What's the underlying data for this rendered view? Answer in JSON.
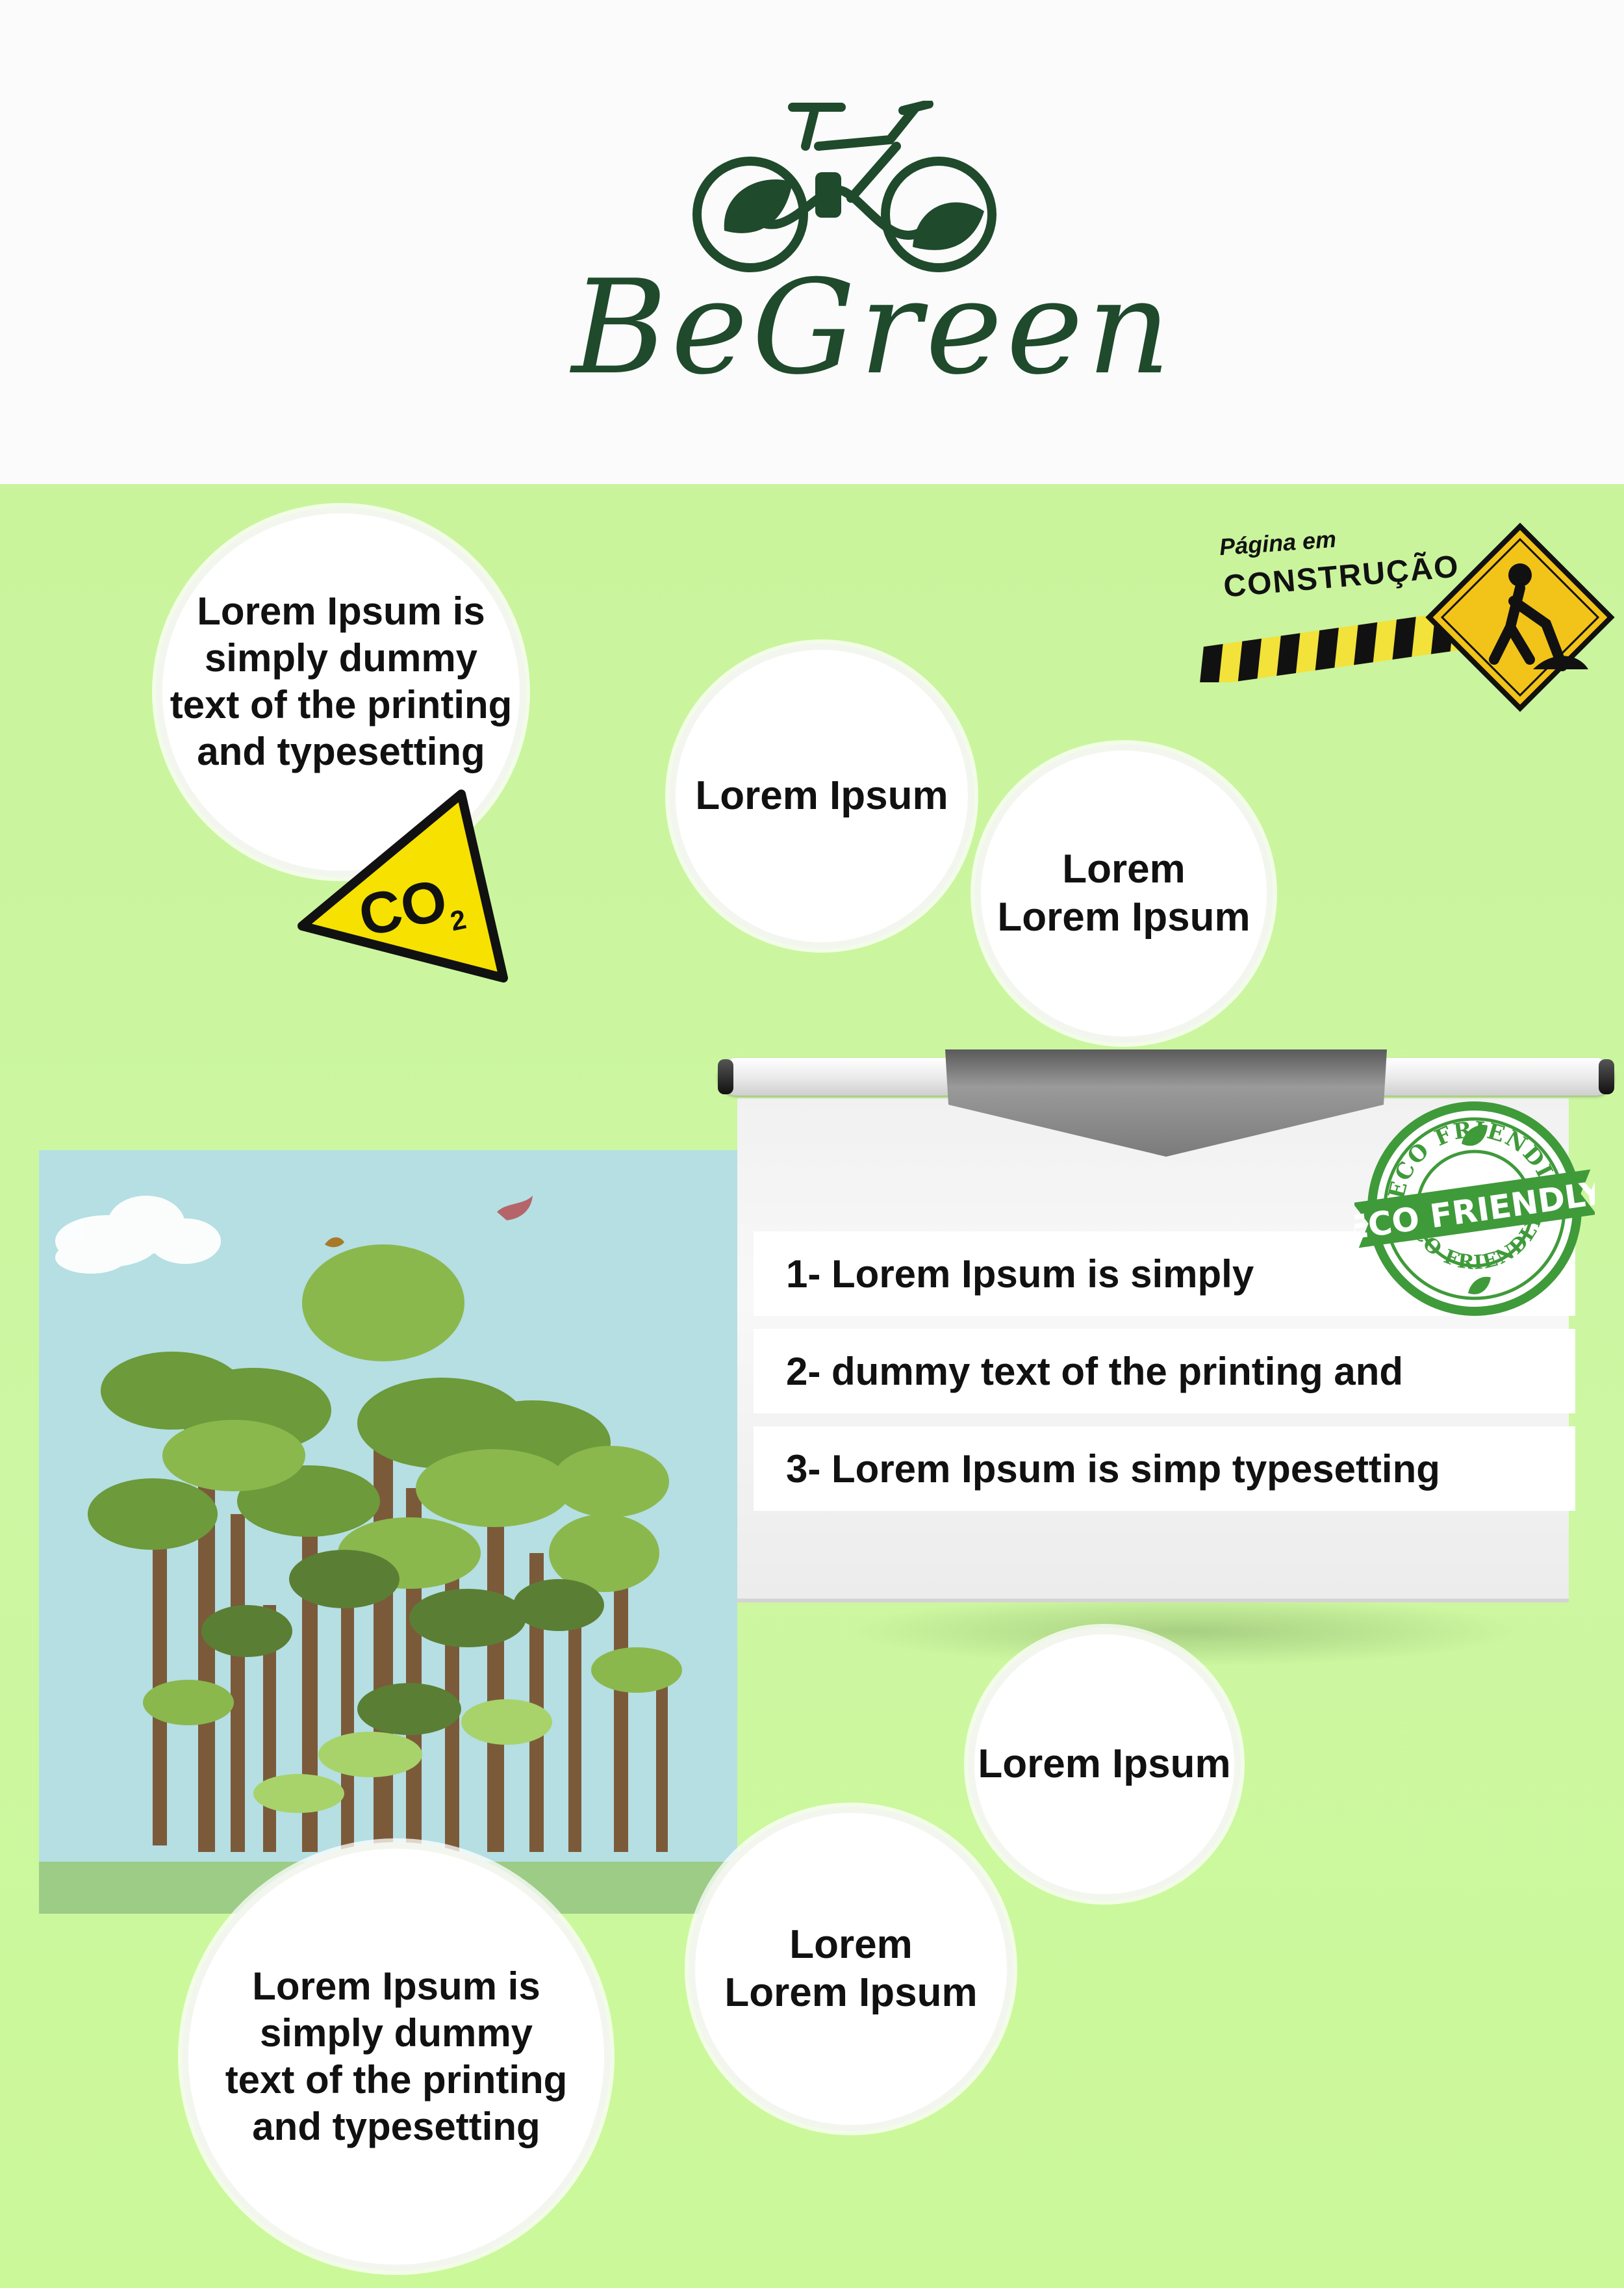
{
  "brand": {
    "name": "BeGreen",
    "icons": {
      "logo": "bicycle-leaf-icon"
    },
    "colors": {
      "logo": "#1f4a2c",
      "background_green": "#c9f49c"
    }
  },
  "construction_sign": {
    "line1": "Página em",
    "line2": "CONSTRUÇÃO"
  },
  "bubbles": [
    {
      "text": "Lorem Ipsum is\nsimply dummy\ntext of the printing\nand typesetting"
    },
    {
      "text": "Lorem Ipsum"
    },
    {
      "text": "Lorem\nLorem Ipsum"
    },
    {
      "text": "Lorem Ipsum"
    },
    {
      "text": "Lorem\nLorem Ipsum"
    },
    {
      "text": "Lorem Ipsum is\nsimply dummy\ntext of the printing\nand typesetting"
    }
  ],
  "co2_sign": {
    "label": "CO",
    "subscript": "2"
  },
  "board": {
    "items": [
      "1- Lorem Ipsum is simply",
      "2- dummy text of the printing and",
      "3- Lorem Ipsum is simp typesetting"
    ]
  },
  "eco_stamp": {
    "top_text": "ECO FRIENDLY",
    "banner_text": "ECO FRIENDLY",
    "bottom_text": "ECO FRIENDLY"
  }
}
